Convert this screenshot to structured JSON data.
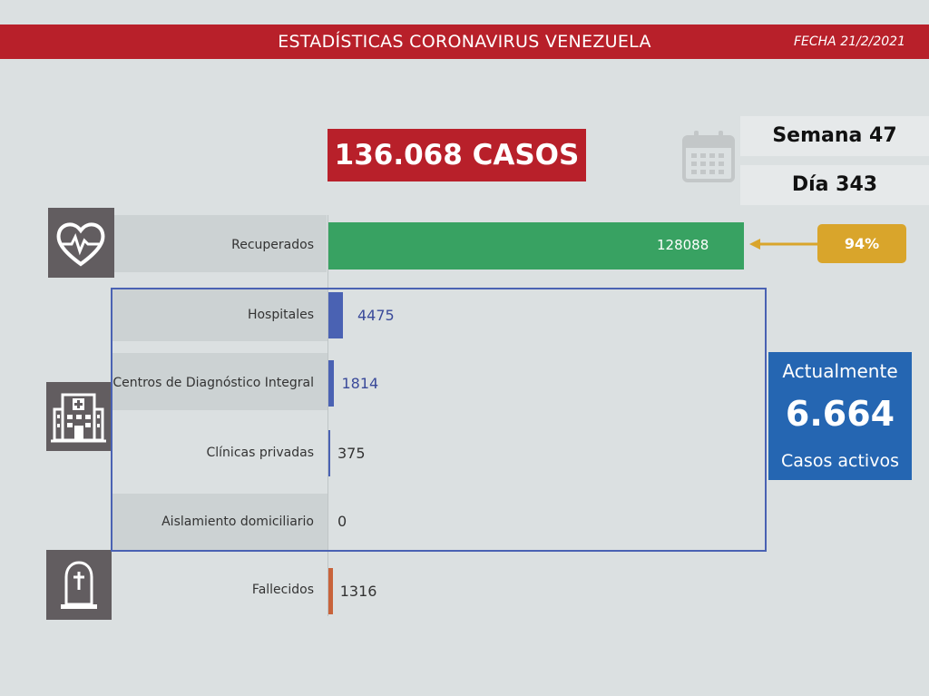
{
  "header": {
    "title": "ESTADÍSTICAS CORONAVIRUS VENEZUELA",
    "date": "FECHA 21/2/2021"
  },
  "total_label": "136.068 CASOS",
  "week_label": "Semana 47",
  "day_label": "Día 343",
  "recovered_percent_label": "94%",
  "active": {
    "title": "Actualmente",
    "value": "6.664",
    "subtitle": "Casos activos"
  },
  "colors": {
    "header": "#b8202a",
    "recovered": "#38a262",
    "active_groups": "#4a62b3",
    "deceased": "#c8633b",
    "badge": "#d9a52b",
    "active_box": "#2566b2",
    "icon_tile": "#625d60"
  },
  "icons": [
    "calendar-icon",
    "heart-pulse-icon",
    "hospital-icon",
    "grave-icon",
    "arrow-left-icon"
  ],
  "chart_data": {
    "type": "bar",
    "orientation": "horizontal",
    "categories": [
      "Recuperados",
      "Hospitales",
      "Centros de Diagnóstico Integral",
      "Clínicas privadas",
      "Aislamiento domiciliario",
      "Fallecidos"
    ],
    "values": [
      128088,
      4475,
      1814,
      375,
      0,
      1316
    ],
    "value_labels": [
      "128088",
      "4475",
      "1814",
      "375",
      "0",
      "1316"
    ],
    "title": "",
    "xlabel": "",
    "ylabel": "",
    "grid": false
  }
}
